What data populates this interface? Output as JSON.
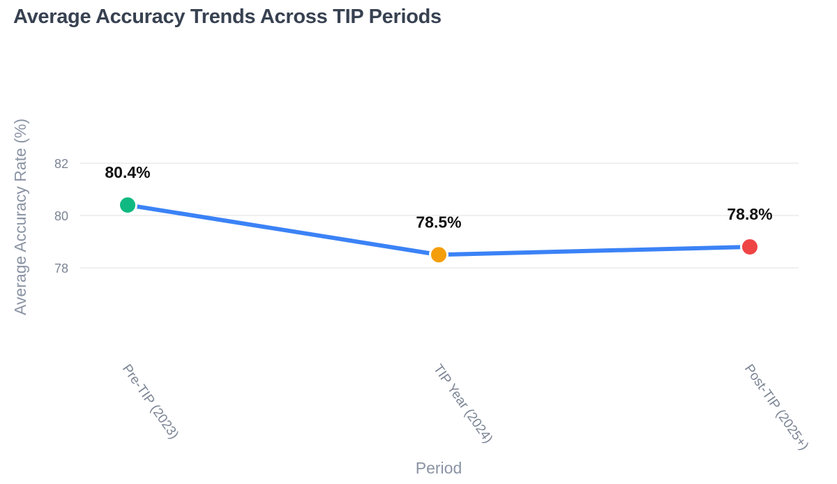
{
  "title": "Average Accuracy Trends Across TIP Periods",
  "chart_data": {
    "type": "line",
    "categories": [
      "Pre-TIP (2023)",
      "TIP Year (2024)",
      "Post-TIP (2025+)"
    ],
    "values": [
      80.4,
      78.5,
      78.8
    ],
    "data_labels": [
      "80.4%",
      "78.5%",
      "78.8%"
    ],
    "point_colors": [
      "#10b981",
      "#f59e0b",
      "#ef4444"
    ],
    "line_color": "#3b82f6",
    "xlabel": "Period",
    "ylabel": "Average Accuracy Rate (%)",
    "yticks": [
      78,
      80,
      82
    ],
    "ylim": [
      76,
      84
    ],
    "grid": true
  }
}
